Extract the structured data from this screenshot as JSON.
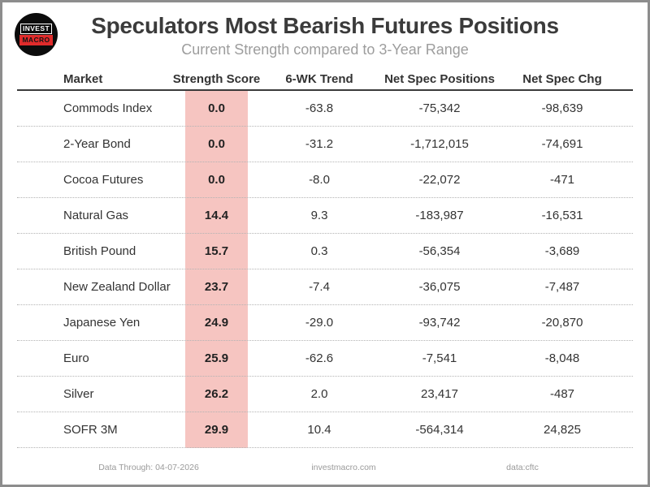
{
  "header": {
    "logo": {
      "line1": "INVEST",
      "line2": "MACRO"
    },
    "title": "Speculators Most Bearish Futures Positions",
    "subtitle": "Current Strength compared to 3-Year Range"
  },
  "table": {
    "columns": [
      "Market",
      "Strength Score",
      "6-WK Trend",
      "Net Spec Positions",
      "Net Spec Chg"
    ],
    "highlight_color": "#f6c5c1",
    "rows": [
      {
        "market": "Commods Index",
        "strength_score": "0.0",
        "trend_6wk": "-63.8",
        "net_spec_positions": "-75,342",
        "net_spec_chg": "-98,639"
      },
      {
        "market": "2-Year Bond",
        "strength_score": "0.0",
        "trend_6wk": "-31.2",
        "net_spec_positions": "-1,712,015",
        "net_spec_chg": "-74,691"
      },
      {
        "market": "Cocoa Futures",
        "strength_score": "0.0",
        "trend_6wk": "-8.0",
        "net_spec_positions": "-22,072",
        "net_spec_chg": "-471"
      },
      {
        "market": "Natural Gas",
        "strength_score": "14.4",
        "trend_6wk": "9.3",
        "net_spec_positions": "-183,987",
        "net_spec_chg": "-16,531"
      },
      {
        "market": "British Pound",
        "strength_score": "15.7",
        "trend_6wk": "0.3",
        "net_spec_positions": "-56,354",
        "net_spec_chg": "-3,689"
      },
      {
        "market": "New Zealand Dollar",
        "strength_score": "23.7",
        "trend_6wk": "-7.4",
        "net_spec_positions": "-36,075",
        "net_spec_chg": "-7,487"
      },
      {
        "market": "Japanese Yen",
        "strength_score": "24.9",
        "trend_6wk": "-29.0",
        "net_spec_positions": "-93,742",
        "net_spec_chg": "-20,870"
      },
      {
        "market": "Euro",
        "strength_score": "25.9",
        "trend_6wk": "-62.6",
        "net_spec_positions": "-7,541",
        "net_spec_chg": "-8,048"
      },
      {
        "market": "Silver",
        "strength_score": "26.2",
        "trend_6wk": "2.0",
        "net_spec_positions": "23,417",
        "net_spec_chg": "-487"
      },
      {
        "market": "SOFR 3M",
        "strength_score": "29.9",
        "trend_6wk": "10.4",
        "net_spec_positions": "-564,314",
        "net_spec_chg": "24,825"
      }
    ]
  },
  "footer": {
    "data_through": "Data Through: 04-07-2026",
    "website": "investmacro.com",
    "source": "data:cftc"
  },
  "colors": {
    "highlight_pink": "#f6c5c1",
    "logo_red": "#e02b2b",
    "frame_gray": "#8d8d8d",
    "title_dark": "#3b3b3b",
    "muted_gray": "#9a9a9a"
  },
  "chart_data": {
    "type": "table",
    "title": "Speculators Most Bearish Futures Positions",
    "subtitle": "Current Strength compared to 3-Year Range",
    "columns": [
      "Market",
      "Strength Score",
      "6-WK Trend",
      "Net Spec Positions",
      "Net Spec Chg"
    ],
    "highlighted_column": "Strength Score",
    "rows": [
      [
        "Commods Index",
        0.0,
        -63.8,
        -75342,
        -98639
      ],
      [
        "2-Year Bond",
        0.0,
        -31.2,
        -1712015,
        -74691
      ],
      [
        "Cocoa Futures",
        0.0,
        -8.0,
        -22072,
        -471
      ],
      [
        "Natural Gas",
        14.4,
        9.3,
        -183987,
        -16531
      ],
      [
        "British Pound",
        15.7,
        0.3,
        -56354,
        -3689
      ],
      [
        "New Zealand Dollar",
        23.7,
        -7.4,
        -36075,
        -7487
      ],
      [
        "Japanese Yen",
        24.9,
        -29.0,
        -93742,
        -20870
      ],
      [
        "Euro",
        25.9,
        -62.6,
        -7541,
        -8048
      ],
      [
        "Silver",
        26.2,
        2.0,
        23417,
        -487
      ],
      [
        "SOFR 3M",
        29.9,
        10.4,
        -564314,
        24825
      ]
    ],
    "footer": [
      "Data Through: 04-07-2026",
      "investmacro.com",
      "data:cftc"
    ]
  }
}
